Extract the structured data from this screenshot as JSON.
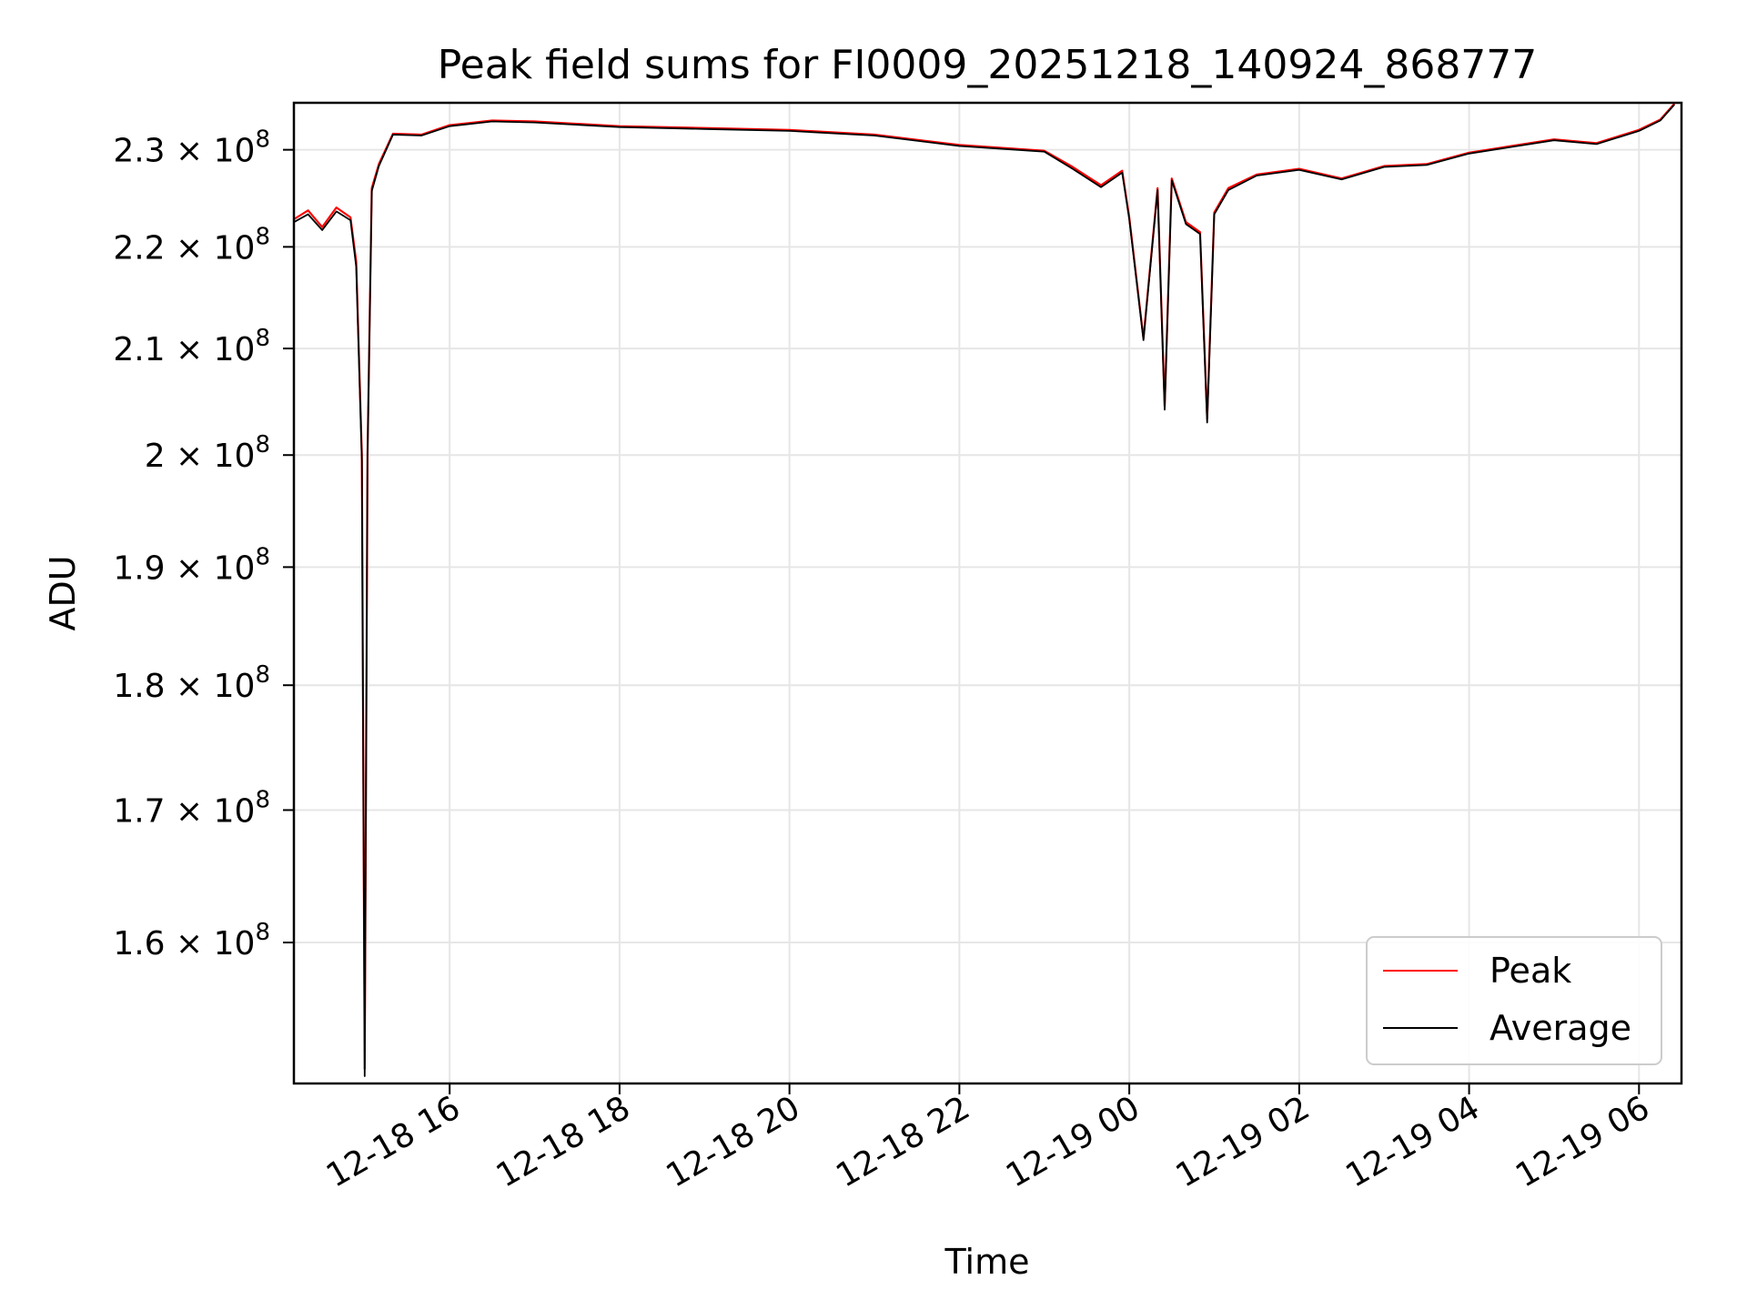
{
  "chart_data": {
    "type": "line",
    "title": "Peak field sums for FI0009_20251218_140924_868777",
    "xlabel": "Time",
    "ylabel": "ADU",
    "y_scale": "log",
    "grid": true,
    "legend_position": "bottom-right",
    "x_range": [
      "2025-12-18 14:10",
      "2025-12-19 06:30"
    ],
    "y_range": [
      150000000,
      235000000
    ],
    "x_ticks": [
      {
        "value": "2025-12-18 16:00",
        "label": "12-18 16"
      },
      {
        "value": "2025-12-18 18:00",
        "label": "12-18 18"
      },
      {
        "value": "2025-12-18 20:00",
        "label": "12-18 20"
      },
      {
        "value": "2025-12-18 22:00",
        "label": "12-18 22"
      },
      {
        "value": "2025-12-19 00:00",
        "label": "12-19 00"
      },
      {
        "value": "2025-12-19 02:00",
        "label": "12-19 02"
      },
      {
        "value": "2025-12-19 04:00",
        "label": "12-19 04"
      },
      {
        "value": "2025-12-19 06:00",
        "label": "12-19 06"
      }
    ],
    "y_ticks": [
      {
        "value": 160000000,
        "mantissa": "1.6",
        "exp": "8"
      },
      {
        "value": 170000000,
        "mantissa": "1.7",
        "exp": "8"
      },
      {
        "value": 180000000,
        "mantissa": "1.8",
        "exp": "8"
      },
      {
        "value": 190000000,
        "mantissa": "1.9",
        "exp": "8"
      },
      {
        "value": 200000000,
        "mantissa": "2",
        "exp": "8"
      },
      {
        "value": 210000000,
        "mantissa": "2.1",
        "exp": "8"
      },
      {
        "value": 220000000,
        "mantissa": "2.2",
        "exp": "8"
      },
      {
        "value": 230000000,
        "mantissa": "2.3",
        "exp": "8"
      }
    ],
    "series": [
      {
        "name": "Peak",
        "color": "#ff0000",
        "x": [
          "2025-12-18 14:10",
          "2025-12-18 14:20",
          "2025-12-18 14:30",
          "2025-12-18 14:40",
          "2025-12-18 14:50",
          "2025-12-18 14:54",
          "2025-12-18 14:58",
          "2025-12-18 15:00",
          "2025-12-18 15:02",
          "2025-12-18 15:05",
          "2025-12-18 15:10",
          "2025-12-18 15:20",
          "2025-12-18 15:40",
          "2025-12-18 16:00",
          "2025-12-18 16:30",
          "2025-12-18 17:00",
          "2025-12-18 18:00",
          "2025-12-18 19:00",
          "2025-12-18 20:00",
          "2025-12-18 21:00",
          "2025-12-18 22:00",
          "2025-12-18 23:00",
          "2025-12-18 23:20",
          "2025-12-18 23:40",
          "2025-12-18 23:55",
          "2025-12-19 00:00",
          "2025-12-19 00:10",
          "2025-12-19 00:20",
          "2025-12-19 00:25",
          "2025-12-19 00:30",
          "2025-12-19 00:40",
          "2025-12-19 00:50",
          "2025-12-19 00:55",
          "2025-12-19 01:00",
          "2025-12-19 01:10",
          "2025-12-19 01:30",
          "2025-12-19 02:00",
          "2025-12-19 02:30",
          "2025-12-19 03:00",
          "2025-12-19 03:30",
          "2025-12-19 04:00",
          "2025-12-19 04:30",
          "2025-12-19 05:00",
          "2025-12-19 05:30",
          "2025-12-19 06:00",
          "2025-12-19 06:15",
          "2025-12-19 06:25"
        ],
        "y": [
          222800000,
          223700000,
          222000000,
          224000000,
          223000000,
          218500000,
          200000000,
          151000000,
          200000000,
          226000000,
          228500000,
          231700000,
          231600000,
          232600000,
          233100000,
          233000000,
          232500000,
          232300000,
          232100000,
          231600000,
          230500000,
          229900000,
          228200000,
          226300000,
          227800000,
          223000000,
          211000000,
          226000000,
          204500000,
          227000000,
          222500000,
          221500000,
          203400000,
          223500000,
          226000000,
          227400000,
          228000000,
          227000000,
          228300000,
          228500000,
          229700000,
          230400000,
          231100000,
          230700000,
          232100000,
          233200000,
          234900000
        ]
      },
      {
        "name": "Average",
        "color": "#000000",
        "x": [
          "2025-12-18 14:10",
          "2025-12-18 14:20",
          "2025-12-18 14:30",
          "2025-12-18 14:40",
          "2025-12-18 14:50",
          "2025-12-18 14:54",
          "2025-12-18 14:58",
          "2025-12-18 15:00",
          "2025-12-18 15:02",
          "2025-12-18 15:05",
          "2025-12-18 15:10",
          "2025-12-18 15:20",
          "2025-12-18 15:40",
          "2025-12-18 16:00",
          "2025-12-18 16:30",
          "2025-12-18 17:00",
          "2025-12-18 18:00",
          "2025-12-18 19:00",
          "2025-12-18 20:00",
          "2025-12-18 21:00",
          "2025-12-18 22:00",
          "2025-12-18 23:00",
          "2025-12-18 23:20",
          "2025-12-18 23:40",
          "2025-12-18 23:55",
          "2025-12-19 00:00",
          "2025-12-19 00:10",
          "2025-12-19 00:20",
          "2025-12-19 00:25",
          "2025-12-19 00:30",
          "2025-12-19 00:40",
          "2025-12-19 00:50",
          "2025-12-19 00:55",
          "2025-12-19 01:00",
          "2025-12-19 01:10",
          "2025-12-19 01:30",
          "2025-12-19 02:00",
          "2025-12-19 02:30",
          "2025-12-19 03:00",
          "2025-12-19 03:30",
          "2025-12-19 04:00",
          "2025-12-19 04:30",
          "2025-12-19 05:00",
          "2025-12-19 05:30",
          "2025-12-19 06:00",
          "2025-12-19 06:15",
          "2025-12-19 06:25"
        ],
        "y": [
          222500000,
          223300000,
          221700000,
          223600000,
          222700000,
          218000000,
          199500000,
          150500000,
          199800000,
          225700000,
          228300000,
          231600000,
          231500000,
          232500000,
          233000000,
          232900000,
          232400000,
          232200000,
          232000000,
          231500000,
          230400000,
          229800000,
          228000000,
          226100000,
          227600000,
          222800000,
          210800000,
          225800000,
          204200000,
          226800000,
          222300000,
          221300000,
          203000000,
          223300000,
          225800000,
          227300000,
          227900000,
          226900000,
          228200000,
          228400000,
          229600000,
          230300000,
          231000000,
          230600000,
          232000000,
          233100000,
          234800000
        ]
      }
    ]
  }
}
